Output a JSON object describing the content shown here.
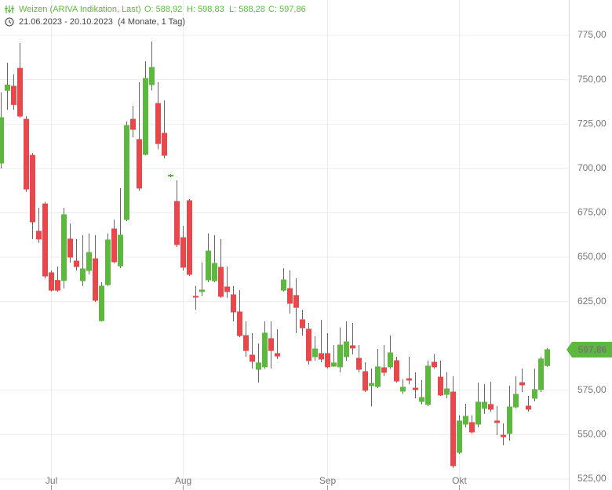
{
  "chart_data": {
    "type": "candlestick",
    "title": "Weizen (ARIVA Indikation, Last)",
    "ohlc_text": [
      "O: 588,92",
      "H: 598,83",
      "L: 588,28",
      "C: 597,86"
    ],
    "date_range": "21.06.2023 - 20.10.2023",
    "period": "(4 Monate, 1 Tag)",
    "categories": [
      null,
      null,
      null,
      null,
      null,
      null,
      null,
      null,
      "Jul",
      null,
      null,
      null,
      null,
      null,
      null,
      null,
      null,
      null,
      null,
      null,
      null,
      null,
      null,
      null,
      null,
      null,
      null,
      null,
      null,
      "Aug",
      null,
      null,
      null,
      null,
      null,
      null,
      null,
      null,
      null,
      null,
      null,
      null,
      null,
      null,
      null,
      null,
      null,
      null,
      null,
      null,
      null,
      null,
      "Sep",
      null,
      null,
      null,
      null,
      null,
      null,
      null,
      null,
      null,
      null,
      null,
      null,
      null,
      null,
      null,
      null,
      null,
      null,
      null,
      null,
      "Okt",
      null,
      null,
      null,
      null,
      null,
      null,
      null,
      null,
      null,
      null,
      null,
      null,
      null,
      null
    ],
    "open": [
      703,
      744,
      746.3,
      756.4,
      727.7,
      707.4,
      664.6,
      680,
      641.2,
      636.9,
      636.9,
      660.2,
      647.8,
      636.7,
      642.5,
      649.1,
      614.2,
      634.5,
      665.9,
      645.1,
      671.2,
      727.7,
      716.3,
      707.9,
      747.2,
      736.6,
      719.8,
      695.7,
      681.4,
      661,
      681.8,
      627.9,
      630.6,
      637.2,
      636.7,
      644.3,
      633.2,
      628.8,
      619.1,
      605.8,
      594.8,
      586.8,
      588.2,
      604.1,
      595.7,
      631.4,
      632.3,
      628.4,
      614.7,
      609.4,
      593.9,
      595.7,
      595.7,
      588.6,
      588.2,
      593.9,
      600.1,
      593,
      585.5,
      577.6,
      577.1,
      587.7,
      588.2,
      591.7,
      574.5,
      581.5,
      576.2,
      568.7,
      567,
      590.8,
      582.4,
      572.7,
      574,
      540,
      555.9,
      556.8,
      555.9,
      564.8,
      567,
      557.7,
      549.7,
      550.6,
      565.6,
      579.3,
      566.1,
      570.5,
      575.4,
      588.92
    ],
    "high": [
      742.8,
      759.5,
      753,
      770.6,
      729.5,
      708.7,
      677.8,
      680.9,
      642.5,
      644.7,
      677.8,
      669,
      660.2,
      662.4,
      663.3,
      662.4,
      635.9,
      663.3,
      671.2,
      688.9,
      726.4,
      735.2,
      748.5,
      760.4,
      771.5,
      748.5,
      738.3,
      696.8,
      693.3,
      667.7,
      682.7,
      633.7,
      646.9,
      663.3,
      662.4,
      660.2,
      644.7,
      633.7,
      631.4,
      613.8,
      607.2,
      601.4,
      613.8,
      613.8,
      609.4,
      643.8,
      642.5,
      638.1,
      620.4,
      612.9,
      605.4,
      614.7,
      607.2,
      600.5,
      610.3,
      613.8,
      612.9,
      600.5,
      590.8,
      587.3,
      598.3,
      600.5,
      605.8,
      593.9,
      581.1,
      593.9,
      585.1,
      580.7,
      591.7,
      595.2,
      591.7,
      585.1,
      582.9,
      560.8,
      567.4,
      560.8,
      579.3,
      578.4,
      579.8,
      566.1,
      556.4,
      577.6,
      582.9,
      587.3,
      571.8,
      587.3,
      593.9,
      598.83
    ],
    "low": [
      700,
      733,
      733,
      728.6,
      686.7,
      660.2,
      658,
      638,
      630.6,
      630.6,
      632.3,
      646.9,
      642.5,
      633.7,
      640.3,
      624.8,
      613.8,
      633.7,
      646.5,
      643.8,
      670.3,
      717.6,
      687.5,
      707.4,
      744,
      711,
      705.7,
      695,
      655.7,
      642.5,
      639.4,
      620.4,
      627.9,
      635.9,
      635.9,
      627,
      627,
      613.8,
      604.9,
      593.9,
      587.3,
      579.3,
      587.3,
      587.3,
      592.6,
      630.6,
      618.2,
      607.2,
      605.8,
      589.5,
      591.7,
      590.8,
      587.3,
      588.2,
      585.1,
      591.7,
      595.2,
      585.1,
      574,
      566,
      576.2,
      582.9,
      587.3,
      579.3,
      573.1,
      578.4,
      570.5,
      567,
      566,
      587.3,
      571.8,
      570.5,
      531.2,
      539.1,
      554.1,
      550.6,
      554.1,
      561.7,
      563,
      549.7,
      544,
      546.6,
      564.8,
      574,
      563,
      568.7,
      574,
      588.28
    ],
    "close": [
      728.6,
      747,
      736,
      729.5,
      688.4,
      669.9,
      660.2,
      639.4,
      631.4,
      631.4,
      673.9,
      650,
      644.7,
      643.4,
      652.6,
      625.7,
      633.7,
      659.7,
      647.4,
      662.4,
      724.2,
      722,
      688.9,
      750.7,
      756.9,
      714,
      707.4,
      696.2,
      657.1,
      644.3,
      640.3,
      627.7,
      631.5,
      653.5,
      646.5,
      627.9,
      630.6,
      619.1,
      605.8,
      597.4,
      591.3,
      590.4,
      607.2,
      597.4,
      594.3,
      637.2,
      624,
      621.7,
      610.2,
      591.7,
      598.3,
      592.6,
      588.2,
      590.4,
      600.5,
      602.3,
      598.8,
      586.8,
      575,
      578.9,
      588.2,
      585.1,
      596.1,
      580.2,
      576.7,
      580.7,
      575.4,
      570.9,
      588.6,
      588.2,
      572.3,
      575.8,
      532.5,
      557.7,
      560.3,
      551.5,
      568.3,
      568.3,
      564.3,
      556.8,
      548.8,
      565.6,
      572.7,
      578,
      564.3,
      575.4,
      592.6,
      597.86
    ],
    "up_color": "#5cb83f",
    "down_color": "#e9474b",
    "last_price": {
      "value": 597.86,
      "label": "597,86"
    },
    "ylim": [
      518.8,
      794.9
    ],
    "yticks": [
      {
        "value": 525,
        "label": "525,00"
      },
      {
        "value": 550,
        "label": "550,00"
      },
      {
        "value": 575,
        "label": "575,00"
      },
      {
        "value": 625,
        "label": "625,00"
      },
      {
        "value": 650,
        "label": "650,00"
      },
      {
        "value": 675,
        "label": "675,00"
      },
      {
        "value": 700,
        "label": "700,00"
      },
      {
        "value": 725,
        "label": "725,00"
      },
      {
        "value": 750,
        "label": "750,00"
      },
      {
        "value": 775,
        "label": "775,00"
      }
    ],
    "grid": true
  }
}
